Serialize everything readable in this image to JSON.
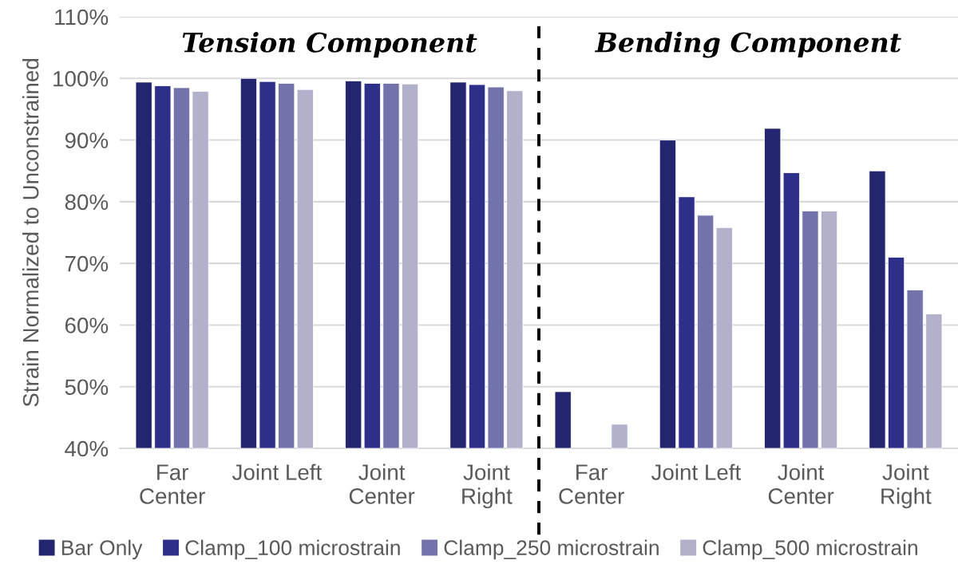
{
  "chart_data": {
    "type": "bar",
    "ylabel": "Strain Normalized to Unconstrained",
    "categories": [
      "Far\nCenter",
      "Joint Left",
      "Joint\nCenter",
      "Joint\nRight",
      "Far\nCenter",
      "Joint Left",
      "Joint\nCenter",
      "Joint\nRight"
    ],
    "series": [
      {
        "name": "Bar Only",
        "color": "#24256f",
        "values": [
          99.4,
          100.0,
          99.6,
          99.4,
          49.2,
          90.0,
          91.9,
          85.0
        ]
      },
      {
        "name": "Clamp_100 microstrain",
        "color": "#2e2f8b",
        "values": [
          98.8,
          99.5,
          99.2,
          99.0,
          null,
          80.8,
          84.7,
          71.0
        ]
      },
      {
        "name": "Clamp_250 microstrain",
        "color": "#7373ab",
        "values": [
          98.5,
          99.2,
          99.2,
          98.6,
          null,
          77.8,
          78.5,
          65.7
        ]
      },
      {
        "name": "Clamp_500 microstrain",
        "color": "#b1b1cc",
        "values": [
          97.9,
          98.2,
          99.1,
          98.0,
          43.9,
          75.8,
          78.5,
          61.8
        ]
      }
    ],
    "ylim": [
      40,
      110
    ],
    "yticks": [
      {
        "value": 40,
        "label": "40%"
      },
      {
        "value": 50,
        "label": "50%"
      },
      {
        "value": 60,
        "label": "60%"
      },
      {
        "value": 70,
        "label": "70%"
      },
      {
        "value": 80,
        "label": "80%"
      },
      {
        "value": 90,
        "label": "90%"
      },
      {
        "value": 100,
        "label": "100%"
      },
      {
        "value": 110,
        "label": "110%"
      }
    ],
    "grid": "y",
    "legend": "bottom",
    "annotations": [
      "Tension Component",
      "Bending Component"
    ]
  }
}
